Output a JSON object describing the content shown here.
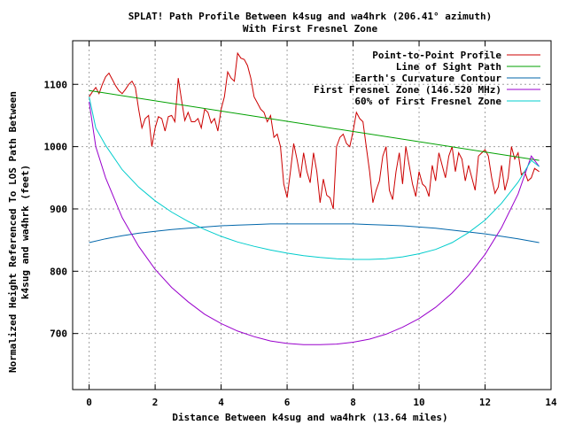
{
  "chart_data": {
    "type": "line",
    "title": "SPLAT! Path Profile Between k4sug and wa4hrk (206.41° azimuth)",
    "subtitle": "With First Fresnel Zone",
    "xlabel": "Distance Between k4sug and wa4hrk (13.64 miles)",
    "ylabel_line1": "Normalized Height Referenced To LOS Path Between",
    "ylabel_line2": "k4sug and wa4hrk (feet)",
    "xlim": [
      -0.5,
      14
    ],
    "ylim": [
      610,
      1170
    ],
    "x_ticks": [
      0,
      2,
      4,
      6,
      8,
      10,
      12,
      14
    ],
    "y_ticks": [
      700,
      800,
      900,
      1000,
      1100
    ],
    "grid": true,
    "legend_position": "top-right",
    "series": [
      {
        "name": "Point-to-Point Profile",
        "color": "#cc0000",
        "x": [
          0.0,
          0.1,
          0.2,
          0.3,
          0.4,
          0.5,
          0.6,
          0.7,
          0.8,
          0.9,
          1.0,
          1.1,
          1.2,
          1.3,
          1.4,
          1.5,
          1.6,
          1.7,
          1.8,
          1.9,
          2.0,
          2.1,
          2.2,
          2.3,
          2.4,
          2.5,
          2.6,
          2.7,
          2.8,
          2.9,
          3.0,
          3.1,
          3.2,
          3.3,
          3.4,
          3.5,
          3.6,
          3.7,
          3.8,
          3.9,
          4.0,
          4.1,
          4.2,
          4.3,
          4.4,
          4.5,
          4.6,
          4.7,
          4.8,
          4.9,
          5.0,
          5.1,
          5.2,
          5.3,
          5.4,
          5.5,
          5.6,
          5.7,
          5.8,
          5.9,
          6.0,
          6.1,
          6.2,
          6.3,
          6.4,
          6.5,
          6.6,
          6.7,
          6.8,
          6.9,
          7.0,
          7.1,
          7.2,
          7.3,
          7.4,
          7.5,
          7.6,
          7.7,
          7.8,
          7.9,
          8.0,
          8.1,
          8.2,
          8.3,
          8.4,
          8.5,
          8.6,
          8.7,
          8.8,
          8.9,
          9.0,
          9.1,
          9.2,
          9.3,
          9.4,
          9.5,
          9.6,
          9.7,
          9.8,
          9.9,
          10.0,
          10.1,
          10.2,
          10.3,
          10.4,
          10.5,
          10.6,
          10.7,
          10.8,
          10.9,
          11.0,
          11.1,
          11.2,
          11.3,
          11.4,
          11.5,
          11.6,
          11.7,
          11.8,
          11.9,
          12.0,
          12.1,
          12.2,
          12.3,
          12.4,
          12.5,
          12.6,
          12.7,
          12.8,
          12.9,
          13.0,
          13.1,
          13.2,
          13.3,
          13.4,
          13.5,
          13.64
        ],
        "values": [
          1080,
          1088,
          1095,
          1085,
          1100,
          1112,
          1118,
          1108,
          1098,
          1090,
          1085,
          1092,
          1100,
          1105,
          1095,
          1060,
          1030,
          1045,
          1050,
          1000,
          1030,
          1048,
          1045,
          1025,
          1048,
          1050,
          1040,
          1110,
          1075,
          1042,
          1055,
          1040,
          1040,
          1045,
          1030,
          1060,
          1055,
          1038,
          1045,
          1025,
          1060,
          1080,
          1120,
          1110,
          1105,
          1150,
          1142,
          1140,
          1130,
          1110,
          1080,
          1070,
          1060,
          1055,
          1040,
          1050,
          1015,
          1020,
          1000,
          940,
          918,
          960,
          1005,
          980,
          950,
          990,
          960,
          942,
          990,
          960,
          910,
          948,
          922,
          918,
          900,
          1000,
          1015,
          1020,
          1005,
          1000,
          1025,
          1055,
          1045,
          1040,
          1000,
          960,
          910,
          930,
          945,
          985,
          1000,
          930,
          915,
          960,
          990,
          940,
          1000,
          970,
          940,
          920,
          960,
          940,
          935,
          920,
          970,
          945,
          990,
          970,
          950,
          985,
          1000,
          960,
          990,
          980,
          945,
          970,
          950,
          930,
          985,
          990,
          995,
          985,
          950,
          925,
          935,
          970,
          930,
          950,
          1000,
          980,
          990,
          955,
          960,
          945,
          950,
          965,
          960
        ]
      },
      {
        "name": "Line of Sight Path",
        "color": "#00a000",
        "x": [
          0,
          13.64
        ],
        "values": [
          1090,
          978
        ]
      },
      {
        "name": "Earth's Curvature Contour",
        "color": "#0066aa",
        "x": [
          0,
          0.5,
          1,
          1.5,
          2,
          2.5,
          3,
          3.5,
          4,
          4.5,
          5,
          5.5,
          6,
          6.5,
          7,
          7.5,
          8,
          8.5,
          9,
          9.5,
          10,
          10.5,
          11,
          11.5,
          12,
          12.5,
          13,
          13.64
        ],
        "values": [
          846,
          852,
          857,
          861,
          864,
          867,
          869,
          871,
          873,
          874,
          875,
          876,
          876,
          876,
          876,
          876,
          876,
          875,
          874,
          873,
          871,
          869,
          866,
          863,
          860,
          856,
          852,
          846
        ]
      },
      {
        "name": "First Fresnel Zone (146.520 MHz)",
        "color": "#9900cc",
        "x": [
          0,
          0.2,
          0.5,
          1,
          1.5,
          2,
          2.5,
          3,
          3.5,
          4,
          4.5,
          5,
          5.5,
          6,
          6.5,
          7,
          7.5,
          8,
          8.5,
          9,
          9.5,
          10,
          10.5,
          11,
          11.5,
          12,
          12.5,
          13,
          13.4,
          13.64
        ],
        "values": [
          1072,
          1000,
          950,
          886,
          840,
          803,
          774,
          751,
          731,
          716,
          704,
          695,
          688,
          684,
          682,
          682,
          683,
          686,
          691,
          699,
          710,
          724,
          742,
          765,
          793,
          827,
          870,
          924,
          985,
          968
        ]
      },
      {
        "name": "60% of First Fresnel Zone",
        "color": "#00cccc",
        "x": [
          0,
          0.2,
          0.5,
          1,
          1.5,
          2,
          2.5,
          3,
          3.5,
          4,
          4.5,
          5,
          5.5,
          6,
          6.5,
          7,
          7.5,
          8,
          8.5,
          9,
          9.5,
          10,
          10.5,
          11,
          11.5,
          12,
          12.5,
          13,
          13.4,
          13.64
        ],
        "values": [
          1080,
          1030,
          1002,
          963,
          935,
          913,
          895,
          880,
          867,
          856,
          847,
          840,
          834,
          829,
          825,
          822,
          820,
          819,
          819,
          820,
          823,
          828,
          835,
          846,
          862,
          882,
          909,
          943,
          978,
          968
        ]
      }
    ]
  }
}
